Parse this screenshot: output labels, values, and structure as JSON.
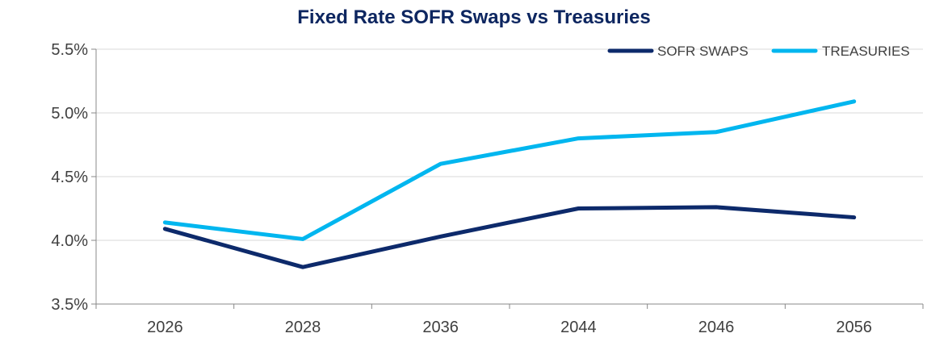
{
  "chart_data": {
    "type": "line",
    "title": "Fixed Rate SOFR Swaps vs Treasuries",
    "xlabel": "",
    "ylabel": "",
    "categories": [
      "2026",
      "2028",
      "2036",
      "2044",
      "2046",
      "2056"
    ],
    "ylim": [
      3.5,
      5.5
    ],
    "yticks": [
      3.5,
      4.0,
      4.5,
      5.0,
      5.5
    ],
    "ytick_labels": [
      "3.5%",
      "4.0%",
      "4.5%",
      "5.0%",
      "5.5%"
    ],
    "grid": true,
    "legend_position": "top-right",
    "series": [
      {
        "name": "SOFR SWAPS",
        "color": "#0d2a6b",
        "values": [
          4.09,
          3.79,
          4.03,
          4.25,
          4.26,
          4.18
        ]
      },
      {
        "name": "TREASURIES",
        "color": "#00b6ef",
        "values": [
          4.14,
          4.01,
          4.6,
          4.8,
          4.85,
          5.09
        ]
      }
    ]
  }
}
